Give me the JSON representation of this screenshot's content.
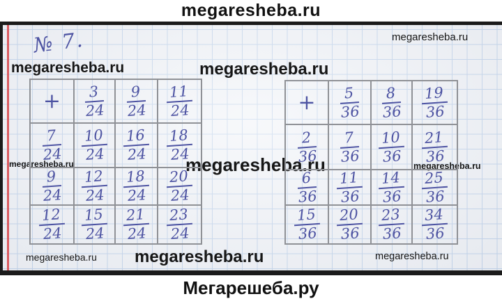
{
  "site": {
    "header_title": "megaresheba.ru",
    "footer_title": "Мегарешеба.ру"
  },
  "exercise": {
    "number_label": "№ 7."
  },
  "watermarks": {
    "top_right": "megaresheba.ru",
    "upper_left": "megaresheba.ru",
    "upper_center": "megaresheba.ru",
    "mid_left": "megaresheba.ru",
    "mid_center": "megaresheba.ru",
    "mid_right": "megaresheba.ru",
    "bottom_left": "megaresheba.ru",
    "bottom_center": "megaresheba.ru",
    "bottom_right": "megaresheba.ru"
  },
  "colors": {
    "ink": "#4d53a2",
    "pencil_line": "#8f9196",
    "grid_line": "#b7cde9",
    "paper": "#eff2f7",
    "margin_line": "#d84a50",
    "bar": "#1b1b1b"
  },
  "tables": [
    {
      "operator": "+",
      "header": [
        {
          "num": "3",
          "den": "24"
        },
        {
          "num": "9",
          "den": "24"
        },
        {
          "num": "11",
          "den": "24"
        }
      ],
      "rows": [
        {
          "label": {
            "num": "7",
            "den": "24"
          },
          "values": [
            {
              "num": "10",
              "den": "24"
            },
            {
              "num": "16",
              "den": "24"
            },
            {
              "num": "18",
              "den": "24"
            }
          ]
        },
        {
          "label": {
            "num": "9",
            "den": "24"
          },
          "values": [
            {
              "num": "12",
              "den": "24"
            },
            {
              "num": "18",
              "den": "24"
            },
            {
              "num": "20",
              "den": "24"
            }
          ]
        },
        {
          "label": {
            "num": "12",
            "den": "24"
          },
          "values": [
            {
              "num": "15",
              "den": "24"
            },
            {
              "num": "21",
              "den": "24"
            },
            {
              "num": "23",
              "den": "24"
            }
          ]
        }
      ]
    },
    {
      "operator": "+",
      "header": [
        {
          "num": "5",
          "den": "36"
        },
        {
          "num": "8",
          "den": "36"
        },
        {
          "num": "19",
          "den": "36"
        }
      ],
      "rows": [
        {
          "label": {
            "num": "2",
            "den": "36"
          },
          "values": [
            {
              "num": "7",
              "den": "36"
            },
            {
              "num": "10",
              "den": "36"
            },
            {
              "num": "21",
              "den": "36"
            }
          ]
        },
        {
          "label": {
            "num": "6",
            "den": "36"
          },
          "values": [
            {
              "num": "11",
              "den": "36"
            },
            {
              "num": "14",
              "den": "36"
            },
            {
              "num": "25",
              "den": "36"
            }
          ]
        },
        {
          "label": {
            "num": "15",
            "den": "36"
          },
          "values": [
            {
              "num": "20",
              "den": "36"
            },
            {
              "num": "23",
              "den": "36"
            },
            {
              "num": "34",
              "den": "36"
            }
          ]
        }
      ]
    }
  ]
}
